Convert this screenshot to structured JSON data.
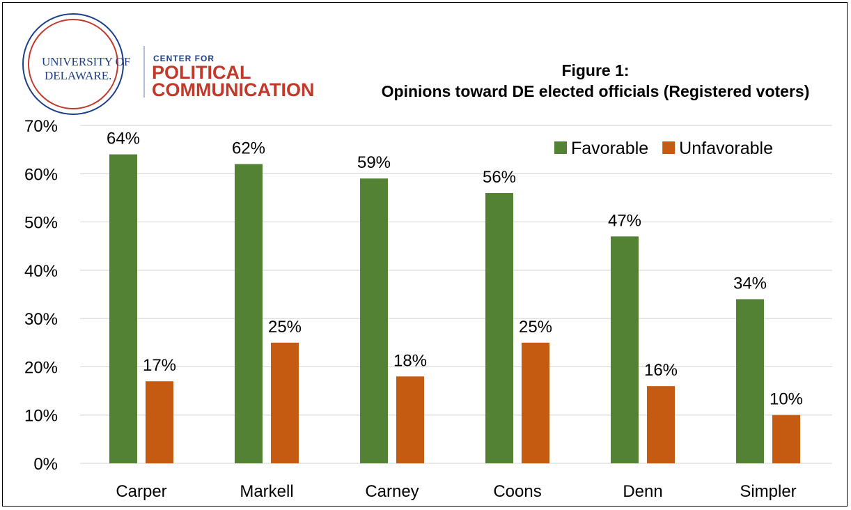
{
  "logo": {
    "university_line1": "UNIVERSITY OF",
    "university_line2": "DELAWARE.",
    "center_for": "CENTER FOR",
    "political": "POLITICAL",
    "communication": "COMMUNICATION"
  },
  "colors": {
    "favorable": "#548235",
    "unfavorable": "#c55a11",
    "grid": "#d9d9d9",
    "logo_blue": "#1d3f88",
    "logo_red": "#c0392b"
  },
  "chart_data": {
    "type": "bar",
    "title_line1": "Figure 1:",
    "title_line2": "Opinions toward DE elected officials (Registered voters)",
    "categories": [
      "Carper",
      "Markell",
      "Carney",
      "Coons",
      "Denn",
      "Simpler"
    ],
    "series": [
      {
        "name": "Favorable",
        "values": [
          64,
          62,
          59,
          56,
          47,
          34
        ],
        "labels": [
          "64%",
          "62%",
          "59%",
          "56%",
          "47%",
          "34%"
        ]
      },
      {
        "name": "Unfavorable",
        "values": [
          17,
          25,
          18,
          25,
          16,
          10
        ],
        "labels": [
          "17%",
          "25%",
          "18%",
          "25%",
          "16%",
          "10%"
        ]
      }
    ],
    "yticks": [
      0,
      10,
      20,
      30,
      40,
      50,
      60,
      70
    ],
    "ytick_labels": [
      "0%",
      "10%",
      "20%",
      "30%",
      "40%",
      "50%",
      "60%",
      "70%"
    ],
    "ylim": [
      0,
      70
    ],
    "grid": true,
    "legend_position": "top-right",
    "xlabel": "",
    "ylabel": ""
  }
}
